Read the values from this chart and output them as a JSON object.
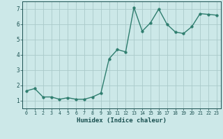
{
  "x": [
    0,
    1,
    2,
    3,
    4,
    5,
    6,
    7,
    8,
    9,
    10,
    11,
    12,
    13,
    14,
    15,
    16,
    17,
    18,
    19,
    20,
    21,
    22,
    23
  ],
  "y": [
    1.65,
    1.8,
    1.25,
    1.25,
    1.1,
    1.2,
    1.1,
    1.1,
    1.25,
    1.5,
    3.75,
    4.35,
    4.2,
    7.1,
    5.55,
    6.1,
    7.0,
    6.0,
    5.5,
    5.4,
    5.85,
    6.7,
    6.65,
    6.6
  ],
  "line_color": "#2e7d6e",
  "bg_color": "#cce8e8",
  "grid_color": "#aacaca",
  "xlabel": "Humidex (Indice chaleur)",
  "xlim": [
    -0.5,
    23.5
  ],
  "ylim": [
    0.5,
    7.5
  ],
  "yticks": [
    1,
    2,
    3,
    4,
    5,
    6,
    7
  ],
  "xticks": [
    0,
    1,
    2,
    3,
    4,
    5,
    6,
    7,
    8,
    9,
    10,
    11,
    12,
    13,
    14,
    15,
    16,
    17,
    18,
    19,
    20,
    21,
    22,
    23
  ],
  "tick_color": "#1a5050",
  "xlabel_color": "#1a5050",
  "marker_size": 2.5,
  "line_width": 1.0
}
